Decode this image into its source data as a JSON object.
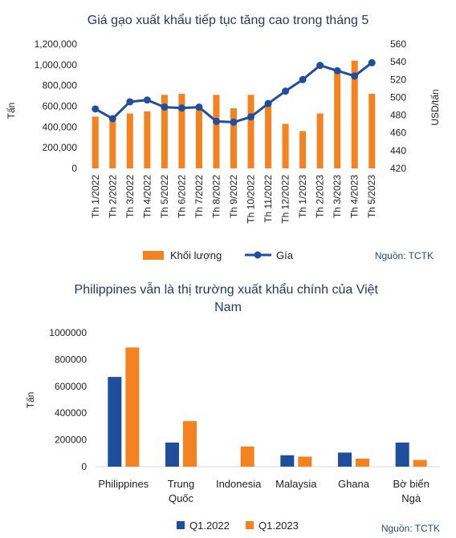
{
  "chart_data": [
    {
      "type": "bar+line",
      "title": "Giá gạo xuất khẩu tiếp tục tăng cao trong tháng 5",
      "ylabel": "Tấn",
      "y2label": "USD/tấn",
      "ylim": [
        0,
        1200000
      ],
      "y2lim": [
        420,
        560
      ],
      "yticks": [
        "0",
        "200,000",
        "400,000",
        "600,000",
        "800,000",
        "1,000,000",
        "1,200,000"
      ],
      "y2ticks": [
        "420",
        "440",
        "460",
        "480",
        "500",
        "520",
        "540",
        "560"
      ],
      "categories": [
        "Th 1/2022",
        "Th 2/2022",
        "Th 3/2022",
        "Th 4/2022",
        "Th 5/2022",
        "Th 6/2022",
        "Th 7/2022",
        "Th 8/2022",
        "Th 9/2022",
        "Th 10/2022",
        "Th 11/2022",
        "Th 12/2022",
        "Th 1/2023",
        "Th 2/2023",
        "Th 3/2023",
        "Th 4/2023",
        "Th 5/2023"
      ],
      "series": [
        {
          "name": "Khối lượng",
          "type": "bar",
          "axis": "left",
          "color": "#f58220",
          "values": [
            500000,
            460000,
            530000,
            550000,
            710000,
            720000,
            600000,
            710000,
            580000,
            710000,
            610000,
            430000,
            360000,
            530000,
            950000,
            1040000,
            720000
          ]
        },
        {
          "name": "Gía",
          "type": "line",
          "axis": "right",
          "color": "#1f4e9c",
          "values": [
            487,
            476,
            495,
            497,
            489,
            488,
            489,
            473,
            472,
            478,
            493,
            507,
            520,
            536,
            530,
            524,
            539
          ]
        }
      ],
      "legend": "bottom",
      "source": "Nguồn: TCTK"
    },
    {
      "type": "bar",
      "title": "Philippines vẫn là thị trường xuất khẩu chính của Việt Nam",
      "ylabel": "Tấn",
      "ylim": [
        0,
        1000000
      ],
      "yticks": [
        "0",
        "200000",
        "400000",
        "600000",
        "800000",
        "1000000"
      ],
      "categories": [
        "Philippines",
        "Trung Quốc",
        "Indonesia",
        "Malaysia",
        "Ghana",
        "Bờ biển Ngà"
      ],
      "series": [
        {
          "name": "Q1.2022",
          "color": "#1f4e9c",
          "values": [
            670000,
            180000,
            0,
            85000,
            105000,
            180000
          ]
        },
        {
          "name": "Q1.2023",
          "color": "#f58220",
          "values": [
            890000,
            340000,
            150000,
            75000,
            60000,
            50000
          ]
        }
      ],
      "legend": "bottom",
      "source": "Nguồn: TCTK"
    }
  ]
}
